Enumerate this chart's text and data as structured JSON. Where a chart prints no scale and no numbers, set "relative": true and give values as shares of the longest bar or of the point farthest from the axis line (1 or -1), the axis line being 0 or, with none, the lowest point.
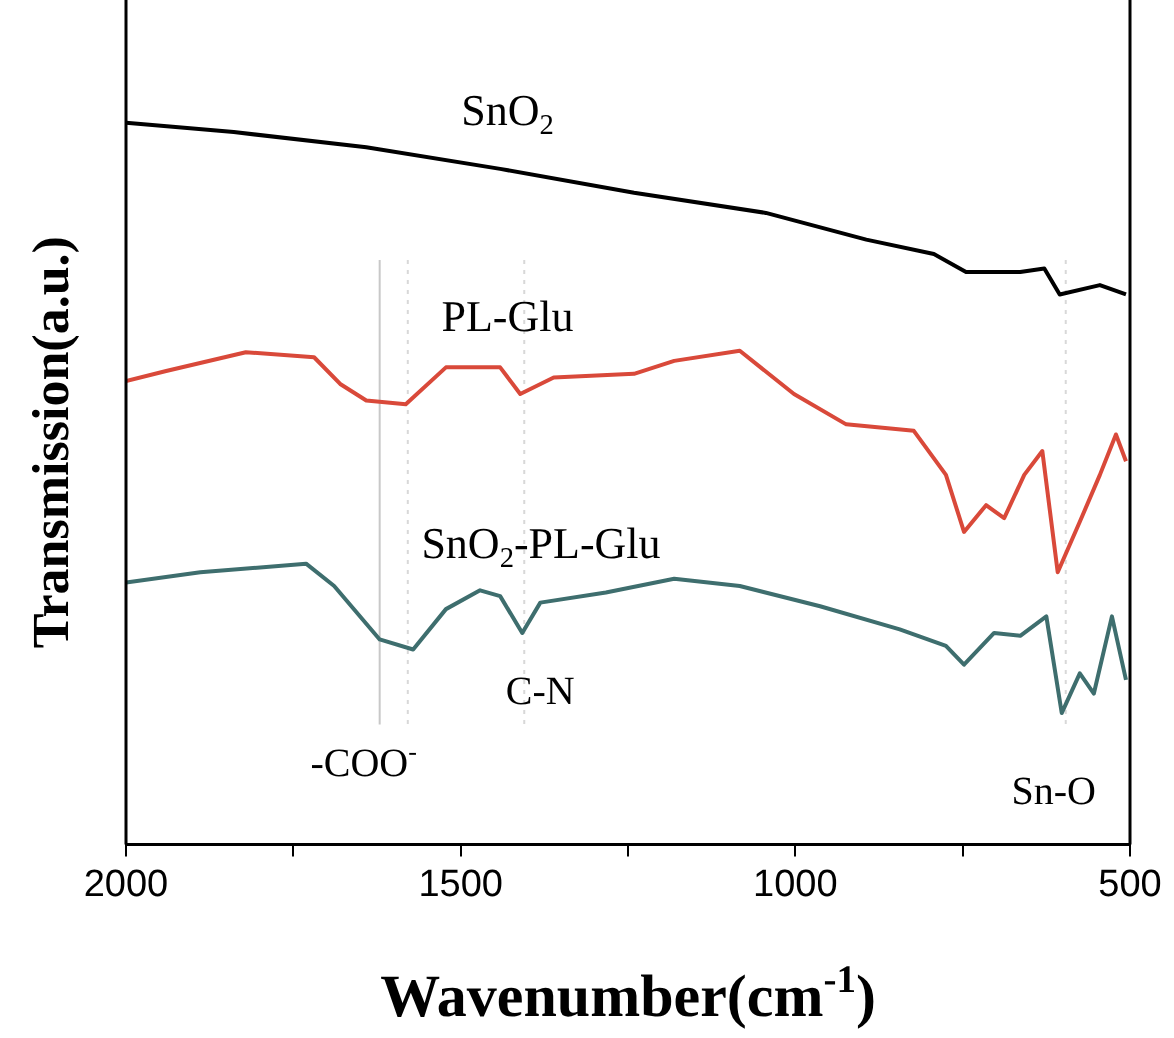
{
  "chart_data": {
    "type": "line",
    "relative": true,
    "xlabel": "Wavenumber(cm$^{-1}$)",
    "ylabel": "Transmission(a.u.)",
    "xlim": [
      2000,
      500
    ],
    "xticks": [
      2000,
      {
        "value": 1750,
        "label": null
      },
      1500,
      {
        "value": 1250,
        "label": null
      },
      1000,
      {
        "value": 750,
        "label": null
      },
      500
    ],
    "grid": false,
    "legend": false,
    "marker": "none",
    "line_style": "solid",
    "series": [
      {
        "name": "SnO$_{2}$",
        "color": "#000000",
        "x": [
          2000,
          1839,
          1641,
          1441,
          1241,
          1044,
          894,
          793,
          745,
          664,
          628,
          605,
          545,
          506
        ],
        "values": [
          1.0,
          0.987,
          0.966,
          0.936,
          0.903,
          0.875,
          0.838,
          0.818,
          0.793,
          0.793,
          0.798,
          0.762,
          0.775,
          0.762
        ]
      },
      {
        "name": "PL-Glu",
        "color": "#d9493a",
        "x": [
          2000,
          1940,
          1821,
          1719,
          1680,
          1641,
          1582,
          1522,
          1441,
          1411,
          1361,
          1241,
          1181,
          1083,
          1002,
          924,
          823,
          775,
          748,
          715,
          688,
          658,
          631,
          608,
          575,
          545,
          521,
          506
        ],
        "values": [
          0.642,
          0.656,
          0.682,
          0.675,
          0.638,
          0.615,
          0.61,
          0.661,
          0.661,
          0.624,
          0.647,
          0.652,
          0.67,
          0.684,
          0.624,
          0.582,
          0.573,
          0.512,
          0.433,
          0.47,
          0.452,
          0.512,
          0.545,
          0.377,
          0.447,
          0.512,
          0.568,
          0.531
        ]
      },
      {
        "name": "SnO$_{2}$-PL-Glu",
        "color": "#3e6e6e",
        "x": [
          2000,
          1889,
          1731,
          1689,
          1621,
          1571,
          1522,
          1471,
          1441,
          1408,
          1381,
          1283,
          1181,
          1083,
          963,
          844,
          775,
          748,
          703,
          664,
          625,
          602,
          575,
          554,
          527,
          506
        ],
        "values": [
          0.363,
          0.377,
          0.389,
          0.358,
          0.284,
          0.27,
          0.326,
          0.352,
          0.344,
          0.293,
          0.335,
          0.349,
          0.368,
          0.358,
          0.33,
          0.298,
          0.275,
          0.249,
          0.293,
          0.289,
          0.316,
          0.182,
          0.237,
          0.209,
          0.316,
          0.228
        ]
      }
    ],
    "ref_lines": [
      {
        "axis": "x",
        "value": 1621,
        "label": "-COO$^{-}$",
        "color": "#c8c8c8",
        "line_style": "solid"
      },
      {
        "axis": "x",
        "value": 1579,
        "color": "#d8d8d8",
        "line_style": "dotted"
      },
      {
        "axis": "x",
        "value": 1405,
        "label": "C-N",
        "color": "#d8d8d8",
        "line_style": "dotted"
      },
      {
        "axis": "x",
        "value": 596,
        "label": "Sn-O",
        "color": "#d8d8d8",
        "line_style": "dotted"
      }
    ]
  }
}
